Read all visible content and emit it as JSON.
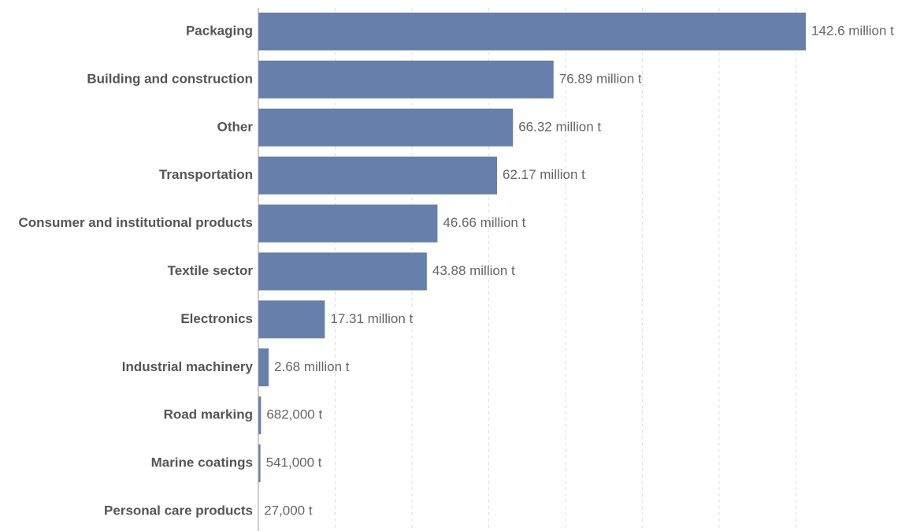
{
  "chart_data": {
    "type": "bar",
    "orientation": "horizontal",
    "title": "",
    "xlabel": "",
    "ylabel": "",
    "unit": "t",
    "categories": [
      "Packaging",
      "Building and construction",
      "Other",
      "Transportation",
      "Consumer and institutional products",
      "Textile sector",
      "Electronics",
      "Industrial machinery",
      "Road marking",
      "Marine coatings",
      "Personal care products"
    ],
    "values": [
      142600000,
      76890000,
      66320000,
      62170000,
      46660000,
      43880000,
      17310000,
      2680000,
      682000,
      541000,
      27000
    ],
    "value_labels": [
      "142.6 million t",
      "76.89 million t",
      "66.32 million t",
      "62.17 million t",
      "46.66 million t",
      "43.88 million t",
      "17.31 million t",
      "2.68 million t",
      "682,000 t",
      "541,000 t",
      "27,000 t"
    ],
    "xlim": [
      0,
      145000000
    ],
    "gridline_step": 20000000,
    "grid": true,
    "legend": "none"
  },
  "colors": {
    "bar": "#6680ab",
    "category_text": "#555555",
    "value_text": "#666666",
    "grid": "#dddddd",
    "axis": "#999999",
    "background": "#ffffff"
  }
}
